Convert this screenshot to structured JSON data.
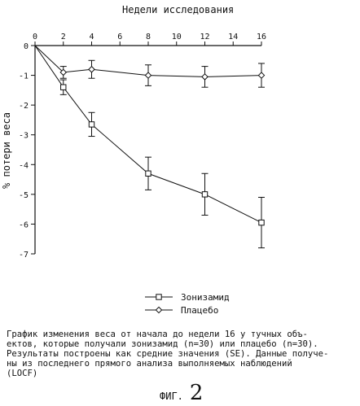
{
  "chart_data": {
    "type": "line",
    "title": "Недели исследования",
    "ylabel": "% потери веса",
    "x": [
      0,
      2,
      4,
      8,
      12,
      16
    ],
    "xticks": [
      0,
      2,
      4,
      6,
      8,
      10,
      12,
      14,
      16
    ],
    "xlim": [
      0,
      16
    ],
    "yticks": [
      0,
      -1,
      -2,
      -3,
      -4,
      -5,
      -6,
      -7
    ],
    "ylim": [
      -7,
      0
    ],
    "grid": false,
    "legend": "bottom-center",
    "series": [
      {
        "name": "Зонизамид",
        "marker": "square",
        "values": [
          0,
          -1.4,
          -2.65,
          -4.3,
          -5.0,
          -5.95
        ],
        "error": [
          0,
          0.25,
          0.4,
          0.55,
          0.7,
          0.85
        ]
      },
      {
        "name": "Плацебо",
        "marker": "diamond",
        "values": [
          0,
          -0.9,
          -0.8,
          -1.0,
          -1.05,
          -1.0
        ],
        "error": [
          0,
          0.2,
          0.3,
          0.35,
          0.35,
          0.4
        ]
      }
    ]
  },
  "caption": "График изменения веса от начала до недели 16 у тучных объ-\nектов, которые получали зонизамид (n=30) или плацебо (n=30).\nРезультаты построены как средние значения (SE). Данные получе-\nны из последнего прямого анализа выполняемых наблюдений\n(LOCF)",
  "figure_label": {
    "word": "ФИГ.",
    "number": "2"
  }
}
